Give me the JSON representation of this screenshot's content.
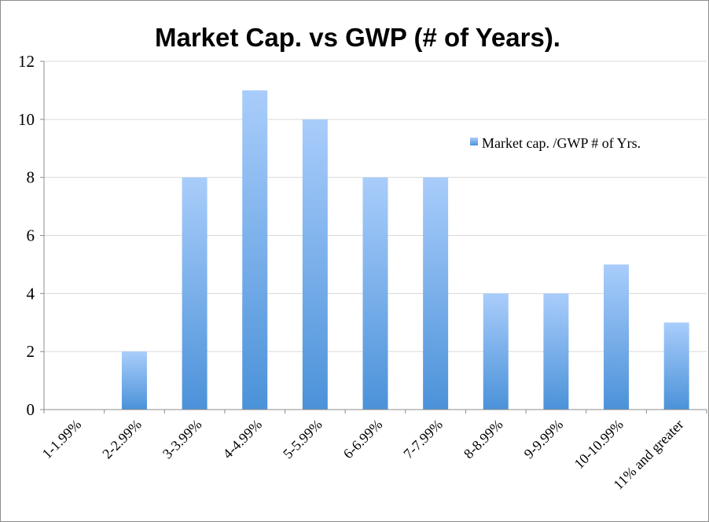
{
  "chart_data": {
    "type": "bar",
    "title": "Market Cap. vs GWP (# of Years).",
    "categories": [
      "1-1.99%",
      "2-2.99%",
      "3-3.99%",
      "4-4.99%",
      "5-5.99%",
      "6-6.99%",
      "7-7.99%",
      "8-8.99%",
      "9-9.99%",
      "10-10.99%",
      "11% and greater"
    ],
    "series": [
      {
        "name": "Market cap. /GWP # of Yrs.",
        "values": [
          0,
          2,
          8,
          11,
          10,
          8,
          8,
          4,
          4,
          5,
          3
        ],
        "color": "#5b9bd5"
      }
    ],
    "yticks": [
      "0",
      "2",
      "4",
      "6",
      "8",
      "10",
      "12"
    ],
    "ylim": [
      0,
      12
    ],
    "grid": true,
    "legend_position": "right"
  }
}
